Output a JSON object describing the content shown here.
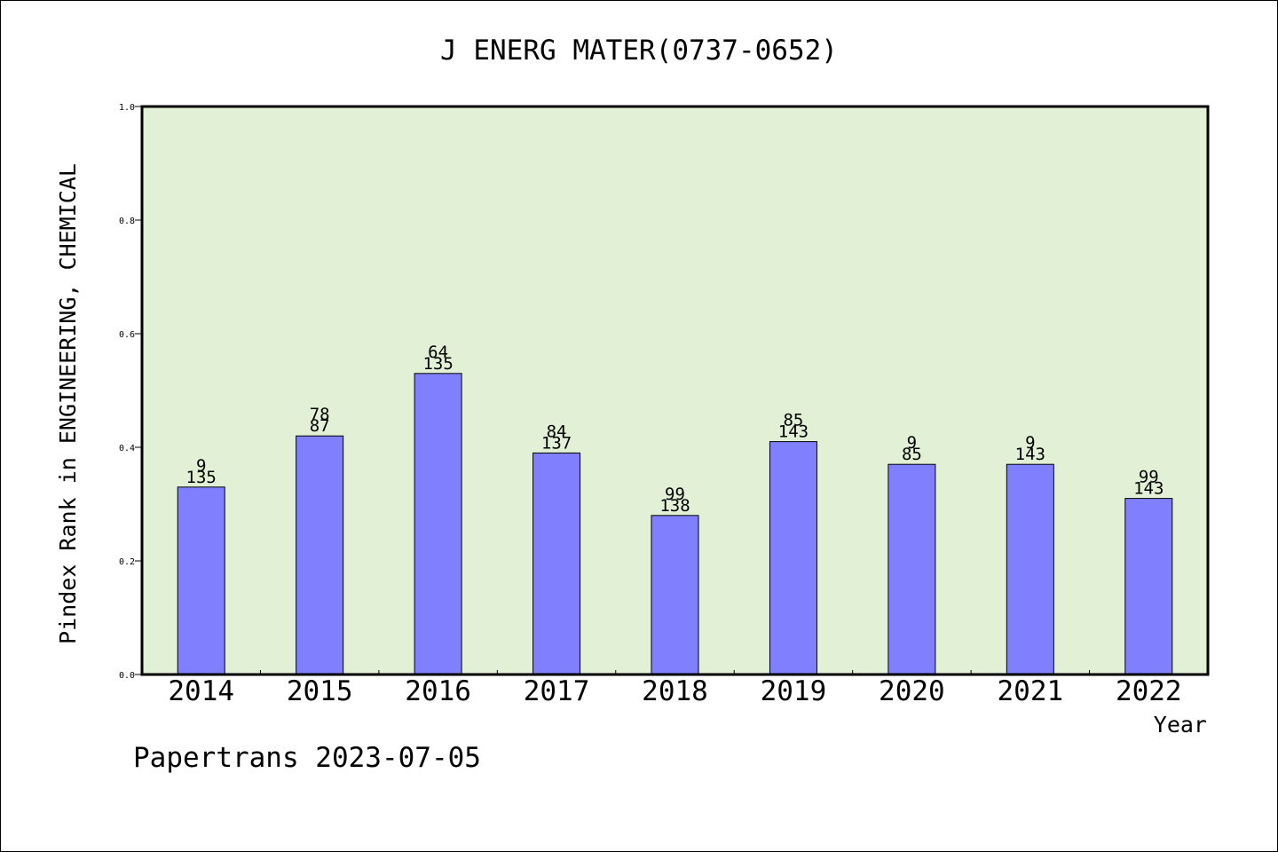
{
  "chart_data": {
    "type": "bar",
    "title": "J ENERG MATER(0737-0652)",
    "xlabel": "Year",
    "ylabel": "Pindex Rank in ENGINEERING, CHEMICAL",
    "ylim": [
      0,
      1.0
    ],
    "yticks": [
      "0.0",
      "0.2",
      "0.4",
      "0.6",
      "0.8",
      "1.0"
    ],
    "ytick_values": [
      0,
      0.2,
      0.4,
      0.6,
      0.8,
      1.0
    ],
    "categories": [
      "2014",
      "2015",
      "2016",
      "2017",
      "2018",
      "2019",
      "2020",
      "2021",
      "2022"
    ],
    "values": [
      0.33,
      0.42,
      0.53,
      0.39,
      0.28,
      0.41,
      0.37,
      0.37,
      0.31
    ],
    "rank_labels": [
      "9",
      "78",
      "64",
      "84",
      "99",
      "85",
      "9",
      "9",
      "99"
    ],
    "total_labels": [
      "135",
      "87",
      "135",
      "137",
      "138",
      "143",
      "85",
      "143",
      "143"
    ],
    "grid": false,
    "colors": {
      "plot_background": "#e2f0d6",
      "bar_fill": "#8080ff",
      "bar_stroke": "#000000"
    }
  },
  "footer": {
    "credit": "Papertrans 2023-07-05"
  }
}
